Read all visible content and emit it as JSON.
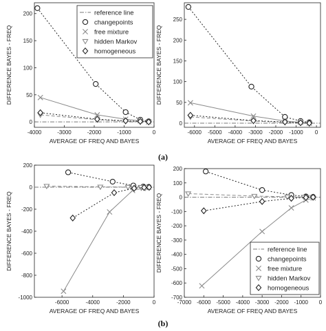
{
  "figure_labels": {
    "a": "(a)",
    "b": "(b)"
  },
  "colors": {
    "dark": "#222222",
    "grey": "#8a8a8a",
    "reference": "#777777"
  },
  "chart_data": [
    {
      "type": "line",
      "xlabel": "AVERAGE OF FREQ AND BAYES",
      "ylabel": "DIFFERENCE BAYES - FREQ",
      "xlim": [
        -4000,
        0
      ],
      "ylim": [
        -10,
        220
      ],
      "xticks": [
        -4000,
        -3000,
        -2000,
        -1000,
        0
      ],
      "yticks": [
        0,
        50,
        100,
        150,
        200
      ],
      "legend_position": "top-right",
      "series": [
        {
          "name": "reference line",
          "style": "dashdot",
          "marker": "none",
          "color": "#777777",
          "x": [
            -4000,
            0
          ],
          "y": [
            0,
            0
          ]
        },
        {
          "name": "changepoints",
          "style": "dotted",
          "marker": "circle",
          "color": "#222222",
          "x": [
            -3900,
            -1950,
            -950,
            -460,
            -180
          ],
          "y": [
            210,
            70,
            18,
            4,
            1
          ]
        },
        {
          "name": "free mixture",
          "style": "solid",
          "marker": "x",
          "color": "#8a8a8a",
          "x": [
            -3800,
            -1900,
            -950,
            -460,
            -180
          ],
          "y": [
            45,
            13,
            5,
            2,
            0
          ]
        },
        {
          "name": "hidden Markov",
          "style": "dashed",
          "marker": "triangle",
          "color": "#8a8a8a",
          "x": [
            -3800,
            -1900,
            -950,
            -460,
            -180
          ],
          "y": [
            13,
            4,
            1,
            0,
            0
          ]
        },
        {
          "name": "homogeneous",
          "style": "dotted",
          "marker": "diamond",
          "color": "#222222",
          "x": [
            -3800,
            -1900,
            -950,
            -460,
            -180
          ],
          "y": [
            17,
            5,
            2,
            1,
            0
          ]
        }
      ]
    },
    {
      "type": "line",
      "xlabel": "AVERAGE OF FREQ AND BAYES",
      "ylabel": "DIFFERENCE BAYES - FREQ",
      "xlim": [
        -6500,
        200
      ],
      "ylim": [
        -10,
        290
      ],
      "xticks": [
        -6000,
        -5000,
        -4000,
        -3000,
        -2000,
        -1000,
        0
      ],
      "yticks": [
        0,
        50,
        100,
        150,
        200,
        250
      ],
      "series": [
        {
          "name": "reference line",
          "style": "dashdot",
          "marker": "none",
          "color": "#777777",
          "x": [
            -6500,
            200
          ],
          "y": [
            0,
            0
          ]
        },
        {
          "name": "changepoints",
          "style": "dotted",
          "marker": "circle",
          "color": "#222222",
          "x": [
            -6300,
            -3200,
            -1550,
            -780,
            -350
          ],
          "y": [
            280,
            88,
            15,
            5,
            2
          ]
        },
        {
          "name": "free mixture",
          "style": "solid",
          "marker": "x",
          "color": "#8a8a8a",
          "x": [
            -6200,
            -3100,
            -1550,
            -780,
            -350
          ],
          "y": [
            49,
            17,
            5,
            2,
            0
          ]
        },
        {
          "name": "hidden Markov",
          "style": "dashed",
          "marker": "triangle",
          "color": "#8a8a8a",
          "x": [
            -6200,
            -3100,
            -1550,
            -780,
            -350
          ],
          "y": [
            15,
            5,
            2,
            1,
            0
          ]
        },
        {
          "name": "homogeneous",
          "style": "dotted",
          "marker": "diamond",
          "color": "#222222",
          "x": [
            -6200,
            -3100,
            -1550,
            -780,
            -350
          ],
          "y": [
            19,
            6,
            3,
            1,
            0
          ]
        }
      ]
    },
    {
      "type": "line",
      "xlabel": "AVERAGE OF FREQ AND BAYES",
      "ylabel": "DIFFERENCE BAYES - FREQ",
      "xlim": [
        -7800,
        0
      ],
      "ylim": [
        -1000,
        200
      ],
      "xticks": [
        -6000,
        -4000,
        -2000,
        0
      ],
      "yticks": [
        -1000,
        -800,
        -600,
        -400,
        -200,
        0,
        200
      ],
      "series": [
        {
          "name": "reference line",
          "style": "dashdot",
          "marker": "none",
          "color": "#777777",
          "x": [
            -7800,
            0
          ],
          "y": [
            0,
            0
          ]
        },
        {
          "name": "changepoints",
          "style": "dotted",
          "marker": "circle",
          "color": "#222222",
          "x": [
            -5600,
            -2700,
            -1350,
            -700,
            -350
          ],
          "y": [
            135,
            50,
            15,
            5,
            2
          ]
        },
        {
          "name": "free mixture",
          "style": "solid",
          "marker": "x",
          "color": "#8a8a8a",
          "x": [
            -5900,
            -2900,
            -1400,
            -700,
            -350
          ],
          "y": [
            -945,
            -225,
            -30,
            -10,
            -2
          ]
        },
        {
          "name": "hidden Markov",
          "style": "dashed",
          "marker": "triangle",
          "color": "#8a8a8a",
          "x": [
            -7000,
            -3500,
            -1700,
            -850,
            -420
          ],
          "y": [
            10,
            3,
            1,
            0,
            0
          ]
        },
        {
          "name": "homogeneous",
          "style": "dotted",
          "marker": "diamond",
          "color": "#222222",
          "x": [
            -5300,
            -2600,
            -1300,
            -650,
            -320
          ],
          "y": [
            -280,
            -50,
            -10,
            -3,
            -1
          ]
        }
      ]
    },
    {
      "type": "line",
      "xlabel": "AVERAGE OF FREQ AND BAYES",
      "ylabel": "DIFFERENCE BAYES - FREQ",
      "xlim": [
        -7000,
        0
      ],
      "ylim": [
        -700,
        200
      ],
      "xticks": [
        -7000,
        -6000,
        -5000,
        -4000,
        -3000,
        -2000,
        -1000,
        0
      ],
      "yticks": [
        -700,
        -600,
        -500,
        -400,
        -300,
        -200,
        -100,
        0,
        100,
        200
      ],
      "legend_position": "bottom-right",
      "series": [
        {
          "name": "reference line",
          "style": "dashdot",
          "marker": "none",
          "color": "#777777",
          "x": [
            -7000,
            0
          ],
          "y": [
            0,
            0
          ]
        },
        {
          "name": "changepoints",
          "style": "dotted",
          "marker": "circle",
          "color": "#222222",
          "x": [
            -5900,
            -3000,
            -1500,
            -750,
            -380
          ],
          "y": [
            180,
            50,
            15,
            5,
            2
          ]
        },
        {
          "name": "free mixture",
          "style": "solid",
          "marker": "x",
          "color": "#8a8a8a",
          "x": [
            -6100,
            -3000,
            -1500,
            -750,
            -380
          ],
          "y": [
            -620,
            -240,
            -75,
            -20,
            -5
          ]
        },
        {
          "name": "hidden Markov",
          "style": "dashed",
          "marker": "triangle",
          "color": "#8a8a8a",
          "x": [
            -6800,
            -3400,
            -1700,
            -850,
            -420
          ],
          "y": [
            25,
            8,
            3,
            1,
            0
          ]
        },
        {
          "name": "homogeneous",
          "style": "dotted",
          "marker": "diamond",
          "color": "#222222",
          "x": [
            -6000,
            -3000,
            -1500,
            -750,
            -380
          ],
          "y": [
            -95,
            -30,
            -8,
            -2,
            0
          ]
        }
      ]
    }
  ]
}
